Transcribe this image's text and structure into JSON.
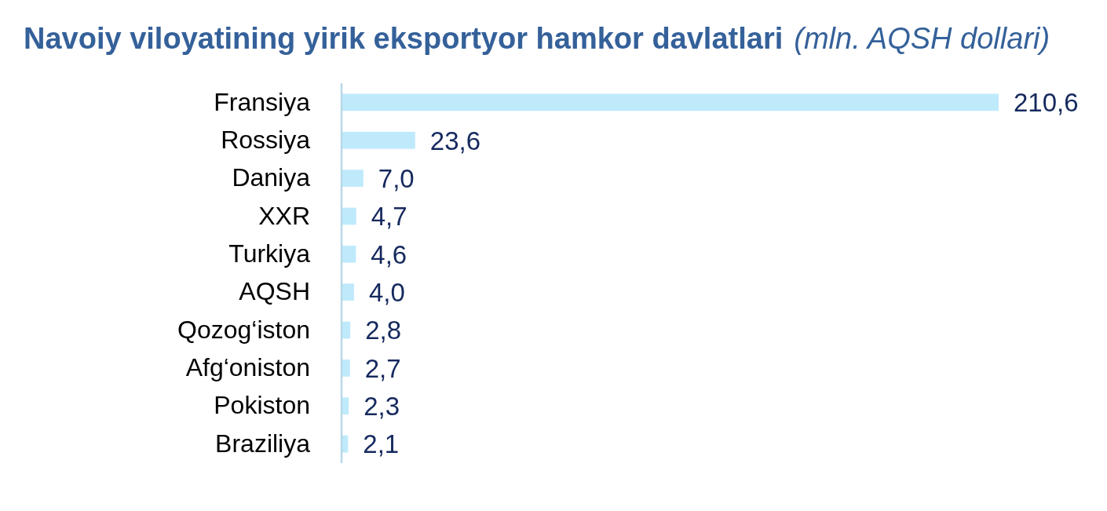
{
  "chart_data": {
    "type": "bar",
    "orientation": "horizontal",
    "title": "Navoiy viloyatining yirik eksportyor hamkor davlatlari",
    "subtitle": "(mln. AQSH dollari)",
    "categories": [
      "Fransiya",
      "Rossiya",
      "Daniya",
      "XXR",
      "Turkiya",
      "AQSH",
      "Qozog‘iston",
      "Afg‘oniston",
      "Pokiston",
      "Braziliya"
    ],
    "values": [
      210.6,
      23.6,
      7.0,
      4.7,
      4.6,
      4.0,
      2.8,
      2.7,
      2.3,
      2.1
    ],
    "value_labels": [
      "210,6",
      "23,6",
      "7,0",
      "4,7",
      "4,6",
      "4,0",
      "2,8",
      "2,7",
      "2,3",
      "2,1"
    ],
    "color": "#bfeafc"
  }
}
